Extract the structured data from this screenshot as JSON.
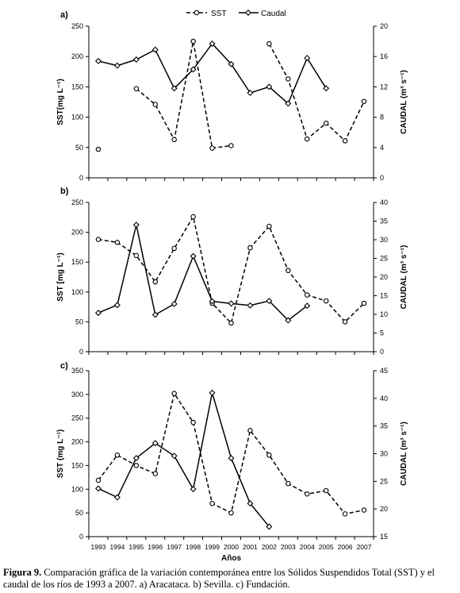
{
  "legend": {
    "sst": "SST",
    "caudal": "Caudal"
  },
  "x_title": "Años",
  "caption": {
    "label": "Figura 9.",
    "text": " Comparación gráfica de la variación contemporánea entre los Sólidos Suspendidos Total (SST) y el caudal de los ríos de 1993 a 2007. a) Aracataca. b) Sevilla. c) Fundación."
  },
  "chart_data": [
    {
      "type": "line",
      "panel_label": "a)",
      "categories": [
        "1993",
        "1994",
        "1995",
        "1996",
        "1997",
        "1998",
        "1999",
        "2000",
        "2001",
        "2002",
        "2003",
        "2004",
        "2005",
        "2006",
        "2007"
      ],
      "ylabel": "SST(mg L⁻¹)",
      "ylabel_right": "CAUDAL (m³ s⁻¹)",
      "ylim": [
        0,
        250
      ],
      "yticks": [
        0,
        50,
        100,
        150,
        200,
        250
      ],
      "ylim_right": [
        0,
        20
      ],
      "yticks_right": [
        0,
        4,
        8,
        12,
        16,
        20
      ],
      "grid": false,
      "legend_position": "top-center",
      "series": [
        {
          "name": "SST",
          "axis": "left",
          "style": "dashed",
          "marker": "open-circle",
          "values": [
            47,
            null,
            147,
            121,
            63,
            225,
            49,
            53,
            null,
            221,
            163,
            64,
            90,
            61,
            126
          ]
        },
        {
          "name": "Caudal",
          "axis": "right",
          "style": "solid",
          "marker": "diamond",
          "values": [
            15.4,
            14.8,
            15.6,
            16.9,
            11.8,
            14.3,
            17.7,
            15.0,
            11.2,
            12.0,
            9.8,
            15.8,
            11.8,
            null,
            null
          ]
        }
      ]
    },
    {
      "type": "line",
      "panel_label": "b)",
      "categories": [
        "1993",
        "1994",
        "1995",
        "1996",
        "1997",
        "1998",
        "1999",
        "2000",
        "2001",
        "2002",
        "2003",
        "2004",
        "2005",
        "2006",
        "2007"
      ],
      "ylabel": "SST [mg L⁻¹)",
      "ylabel_right": "CAUDAL (m³ s⁻¹)",
      "ylim": [
        0,
        250
      ],
      "yticks": [
        0,
        50,
        100,
        150,
        200,
        250
      ],
      "ylim_right": [
        0,
        40
      ],
      "yticks_right": [
        0,
        5,
        10,
        15,
        20,
        25,
        30,
        35,
        40
      ],
      "grid": false,
      "series": [
        {
          "name": "SST",
          "axis": "left",
          "style": "dashed",
          "marker": "open-circle",
          "values": [
            188,
            183,
            161,
            117,
            173,
            226,
            81,
            48,
            174,
            210,
            136,
            95,
            85,
            50,
            81
          ]
        },
        {
          "name": "Caudal",
          "axis": "right",
          "style": "solid",
          "marker": "diamond",
          "values": [
            10.4,
            12.5,
            34.0,
            9.9,
            12.8,
            25.6,
            13.5,
            12.9,
            12.4,
            13.6,
            8.4,
            12.3,
            null,
            null,
            null
          ]
        }
      ]
    },
    {
      "type": "line",
      "panel_label": "c)",
      "categories": [
        "1993",
        "1994",
        "1995",
        "1996",
        "1997",
        "1998",
        "1999",
        "2000",
        "2001",
        "2002",
        "2003",
        "2004",
        "2005",
        "2006",
        "2007"
      ],
      "ylabel": "SST (mg L⁻¹)",
      "ylabel_right": "CAUDAL (m³ s⁻¹)",
      "ylim": [
        0,
        350
      ],
      "yticks": [
        0,
        50,
        100,
        150,
        200,
        250,
        300,
        350
      ],
      "ylim_right": [
        15,
        45
      ],
      "yticks_right": [
        15,
        20,
        25,
        30,
        35,
        40,
        45
      ],
      "grid": false,
      "xlabel": "Años",
      "series": [
        {
          "name": "SST",
          "axis": "left",
          "style": "dashed",
          "marker": "open-circle",
          "values": [
            119,
            172,
            150,
            133,
            302,
            241,
            70,
            50,
            224,
            172,
            112,
            90,
            97,
            48,
            56
          ]
        },
        {
          "name": "Caudal",
          "axis": "right",
          "style": "solid",
          "marker": "diamond",
          "values": [
            23.7,
            22.1,
            29.2,
            31.9,
            29.6,
            23.6,
            41.0,
            29.2,
            21.0,
            16.8,
            null,
            null,
            null,
            null,
            null
          ]
        }
      ]
    }
  ]
}
